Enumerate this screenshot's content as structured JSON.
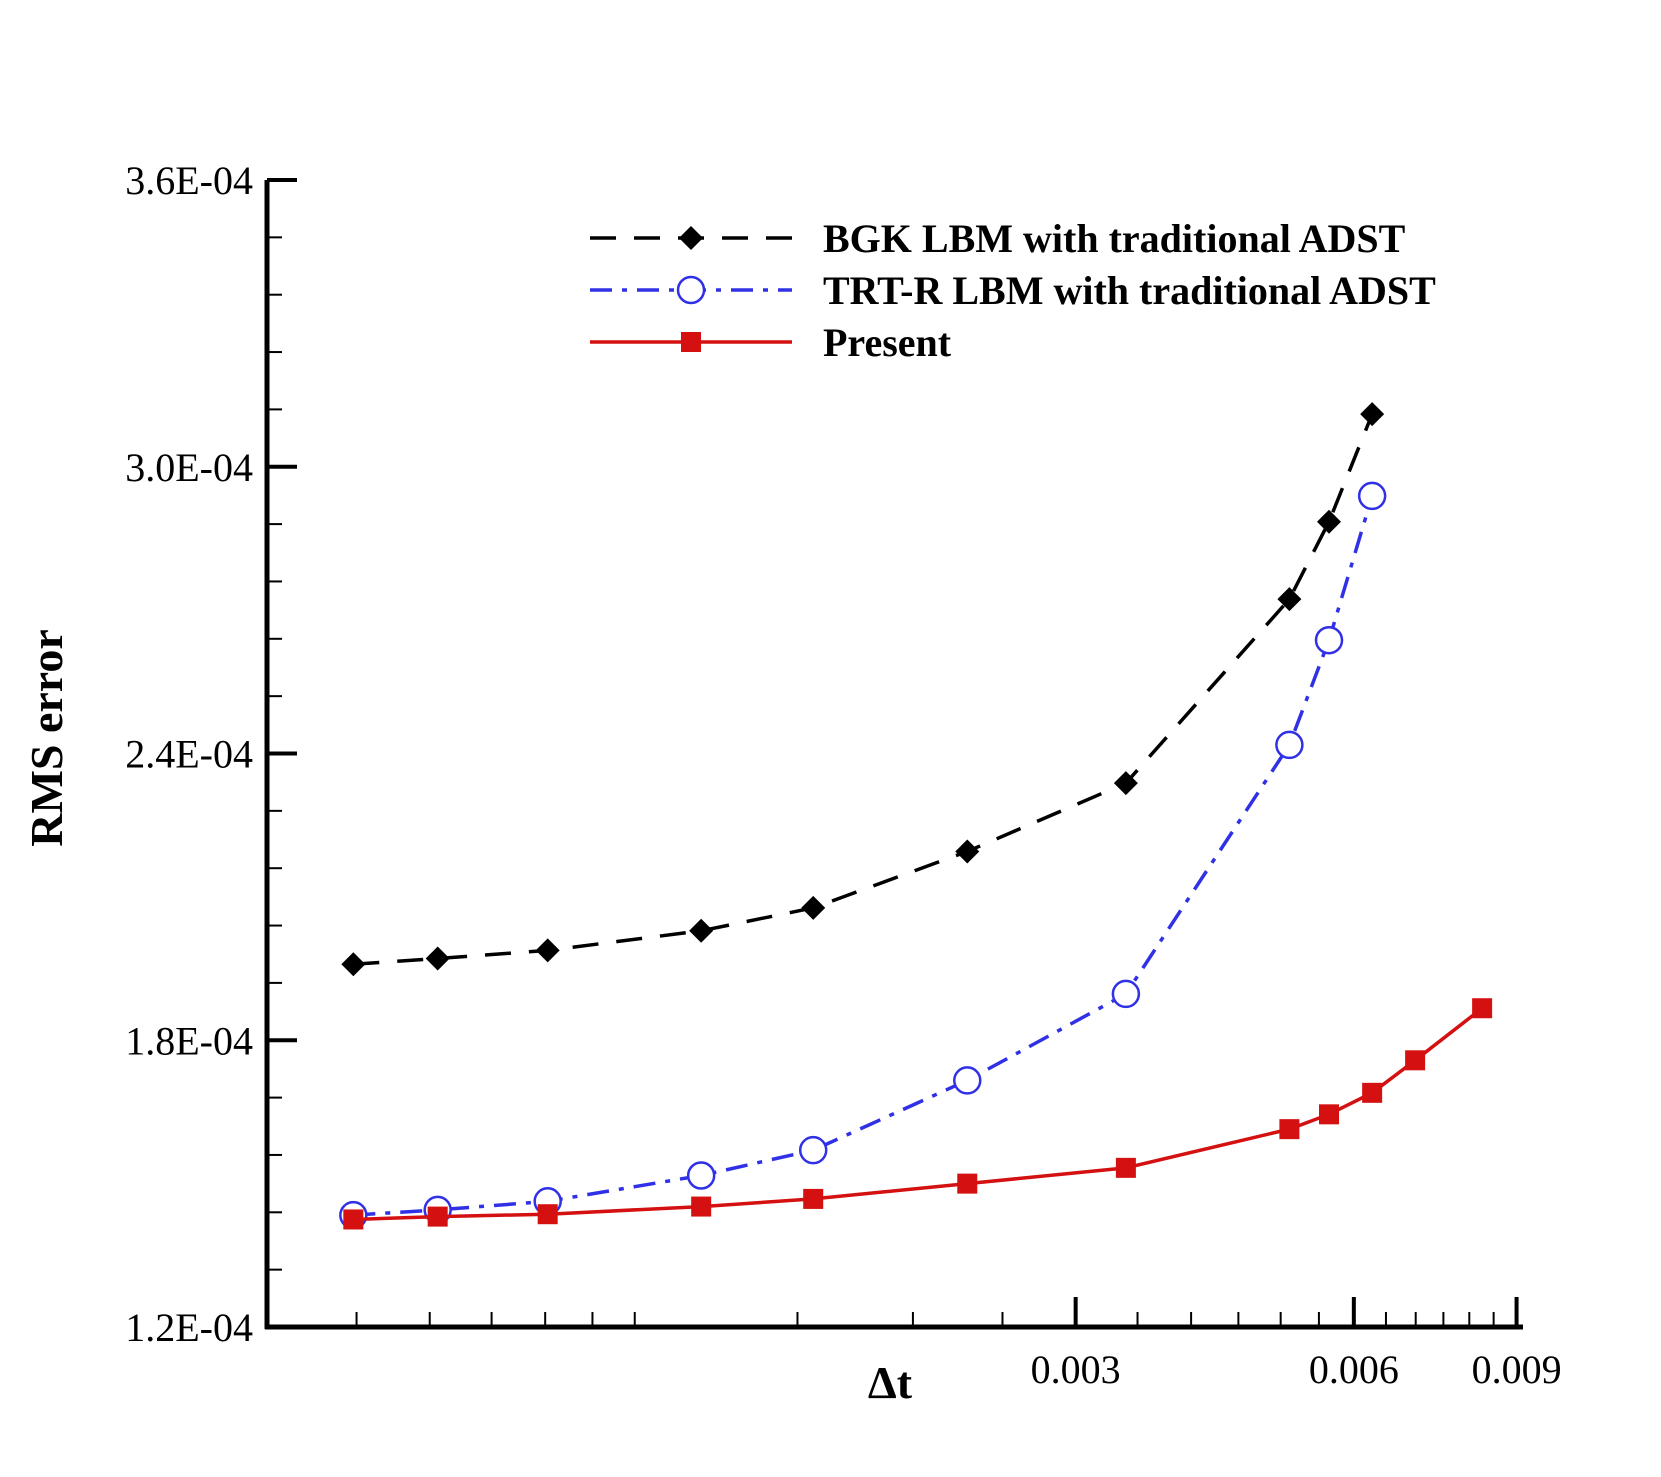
{
  "chart_data": {
    "type": "line",
    "title": "",
    "xlabel": "Δt",
    "ylabel": "RMS error",
    "x_scale": "log",
    "xlim": [
      0.0004,
      0.0091
    ],
    "ylim": [
      0.00012,
      0.00036
    ],
    "y_ticks": [
      0.00012,
      0.00018,
      0.00024,
      0.0003,
      0.00036
    ],
    "y_tick_labels": [
      "1.2E-04",
      "1.8E-04",
      "2.4E-04",
      "3.0E-04",
      "3.6E-04"
    ],
    "x_ticks": [
      0.003,
      0.006,
      0.009
    ],
    "x_tick_labels": [
      "0.003",
      "0.006",
      "0.009"
    ],
    "legend_position": "top-right",
    "series": [
      {
        "name": "BGK LBM with traditional ADST",
        "color": "#000000",
        "line_style": "dashed",
        "marker": "diamond-filled",
        "x": [
          0.000496,
          0.000612,
          0.000805,
          0.00118,
          0.00156,
          0.00229,
          0.0034,
          0.00511,
          0.00564,
          0.00628
        ],
        "y": [
          0.0001959,
          0.0001971,
          0.0001988,
          0.0002029,
          0.0002077,
          0.0002195,
          0.0002338,
          0.0002723,
          0.0002885,
          0.000311
        ]
      },
      {
        "name": "TRT-R LBM with traditional ADST",
        "color": "#3030e6",
        "line_style": "dash-dot",
        "marker": "circle-open",
        "x": [
          0.000496,
          0.000612,
          0.000805,
          0.00118,
          0.00156,
          0.00229,
          0.0034,
          0.00511,
          0.00564,
          0.00628
        ],
        "y": [
          0.0001434,
          0.0001445,
          0.0001463,
          0.0001517,
          0.000157,
          0.0001716,
          0.0001897,
          0.0002418,
          0.0002637,
          0.0002939
        ]
      },
      {
        "name": "Present",
        "color": "#d41010",
        "line_style": "solid",
        "marker": "square-filled",
        "x": [
          0.000496,
          0.000612,
          0.000805,
          0.00118,
          0.00156,
          0.00229,
          0.0034,
          0.00511,
          0.00564,
          0.00628,
          0.00699,
          0.00826
        ],
        "y": [
          0.0001425,
          0.0001431,
          0.0001436,
          0.0001452,
          0.0001468,
          0.00015,
          0.0001533,
          0.0001614,
          0.0001645,
          0.000169,
          0.0001758,
          0.0001867
        ]
      }
    ]
  }
}
